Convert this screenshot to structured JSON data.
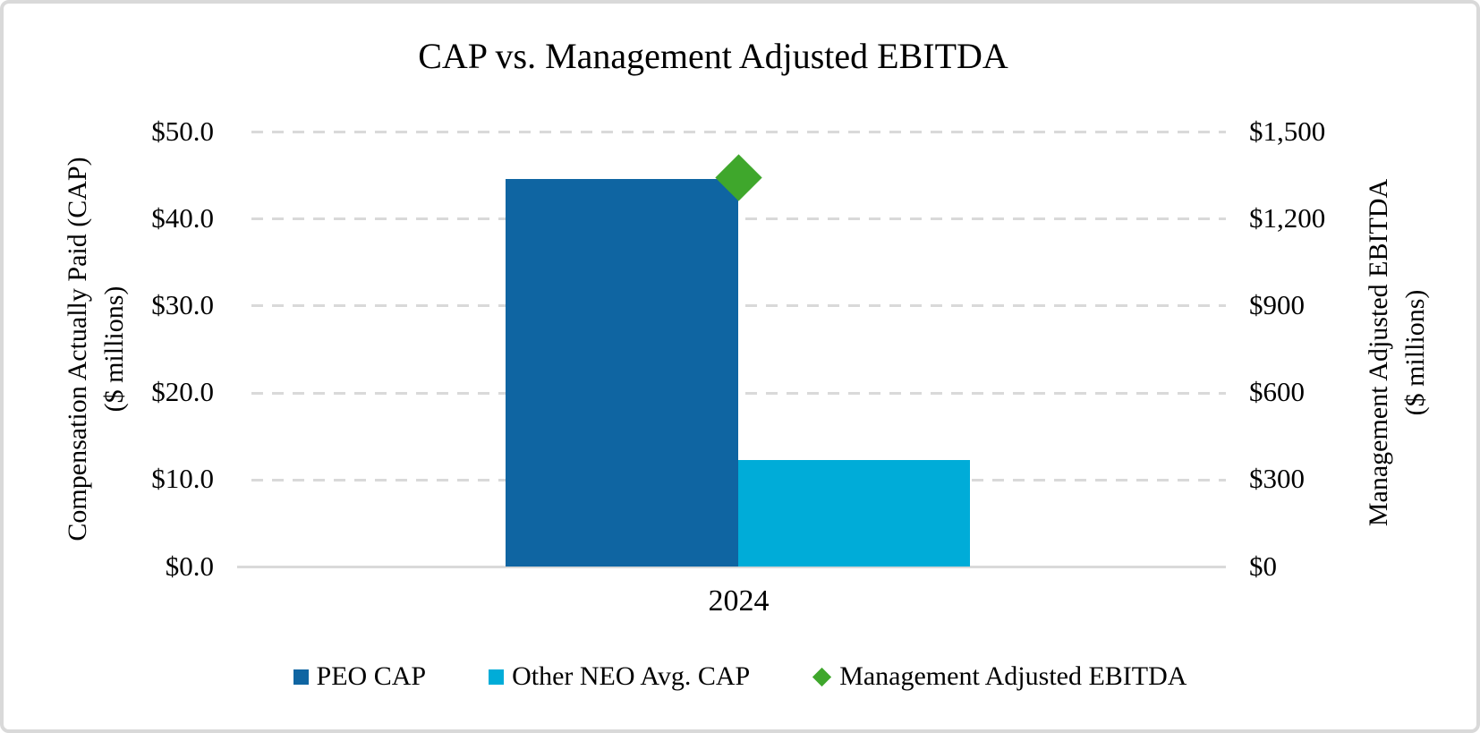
{
  "chart_data": {
    "type": "bar",
    "title": "CAP vs. Management Adjusted EBITDA",
    "categories": [
      "2024"
    ],
    "series": [
      {
        "key": "peo",
        "name": "PEO CAP",
        "type": "bar",
        "axis": "left",
        "values": [
          44.6
        ],
        "color": "#0F65A2"
      },
      {
        "key": "neo",
        "name": "Other NEO Avg. CAP",
        "type": "bar",
        "axis": "left",
        "values": [
          12.2
        ],
        "color": "#00ACD8"
      },
      {
        "key": "ebitda",
        "name": "Management Adjusted EBITDA",
        "type": "scatter",
        "marker": "diamond",
        "axis": "right",
        "values": [
          1340
        ],
        "color": "#3FA72C"
      }
    ],
    "left_axis": {
      "title_line1": "Compensation Actually Paid (CAP)",
      "title_line2": "($ millions)",
      "ticks": [
        "$50.0",
        "$40.0",
        "$30.0",
        "$20.0",
        "$10.0",
        "$0.0"
      ],
      "min": 0,
      "max": 50
    },
    "right_axis": {
      "title_line1": "Management Adjusted EBITDA",
      "title_line2": "($ millions)",
      "ticks": [
        "$1,500",
        "$1,200",
        "$900",
        "$600",
        "$300",
        "$0"
      ],
      "min": 0,
      "max": 1500
    },
    "x_tick_label": "2024",
    "legend_position": "bottom",
    "grid": "horizontal-dashed",
    "colors": {
      "gridline": "#D9D9D9",
      "axis_line": "#D9D9D9",
      "frame_border": "#D9D9D9",
      "text": "#000000"
    }
  }
}
